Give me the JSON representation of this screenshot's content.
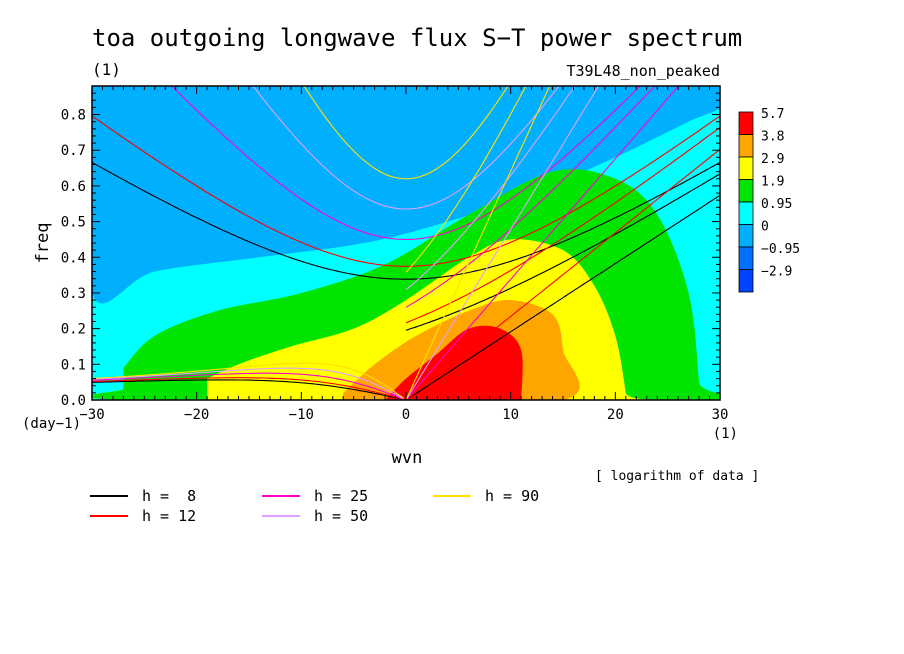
{
  "chart_data": {
    "type": "heatmap",
    "title": "toa outgoing longwave flux S−T power spectrum",
    "title_unit": "(1)",
    "subtitle_right": "T39L48_non_peaked",
    "xlabel": "wvn",
    "ylabel": "freq",
    "x_unit": "(1)",
    "y_unit": "(day−1)",
    "xlim": [
      -30,
      30
    ],
    "ylim": [
      0,
      0.88
    ],
    "x_ticks": [
      -30,
      -20,
      -10,
      0,
      10,
      20,
      30
    ],
    "x_tick_labels": [
      "−30",
      "−20",
      "−10",
      "0",
      "10",
      "20",
      "30"
    ],
    "y_ticks": [
      0,
      0.1,
      0.2,
      0.3,
      0.4,
      0.5,
      0.6,
      0.7,
      0.8
    ],
    "y_tick_labels": [
      "0.0",
      "0.1",
      "0.2",
      "0.3",
      "0.4",
      "0.5",
      "0.6",
      "0.7",
      "0.8"
    ],
    "colorbar": {
      "levels": [
        "5.7",
        "3.8",
        "2.9",
        "1.9",
        "0.95",
        "0",
        "−0.95",
        "−2.9"
      ],
      "colors": [
        "#ff0000",
        "#ffa500",
        "#ffff00",
        "#00e400",
        "#00ffff",
        "#00b0ff",
        "#0070ff",
        "#0044ff"
      ]
    },
    "note": "[ logarithm of data ]",
    "dispersion_curves": [
      {
        "label": "h =  8",
        "h": 8,
        "color": "#000000"
      },
      {
        "label": "h = 12",
        "h": 12,
        "color": "#ff0000"
      },
      {
        "label": "h = 25",
        "h": 25,
        "color": "#ff00d0"
      },
      {
        "label": "h = 50",
        "h": 50,
        "color": "#e0a0ff"
      },
      {
        "label": "h = 90",
        "h": 90,
        "color": "#ffe000"
      }
    ]
  }
}
